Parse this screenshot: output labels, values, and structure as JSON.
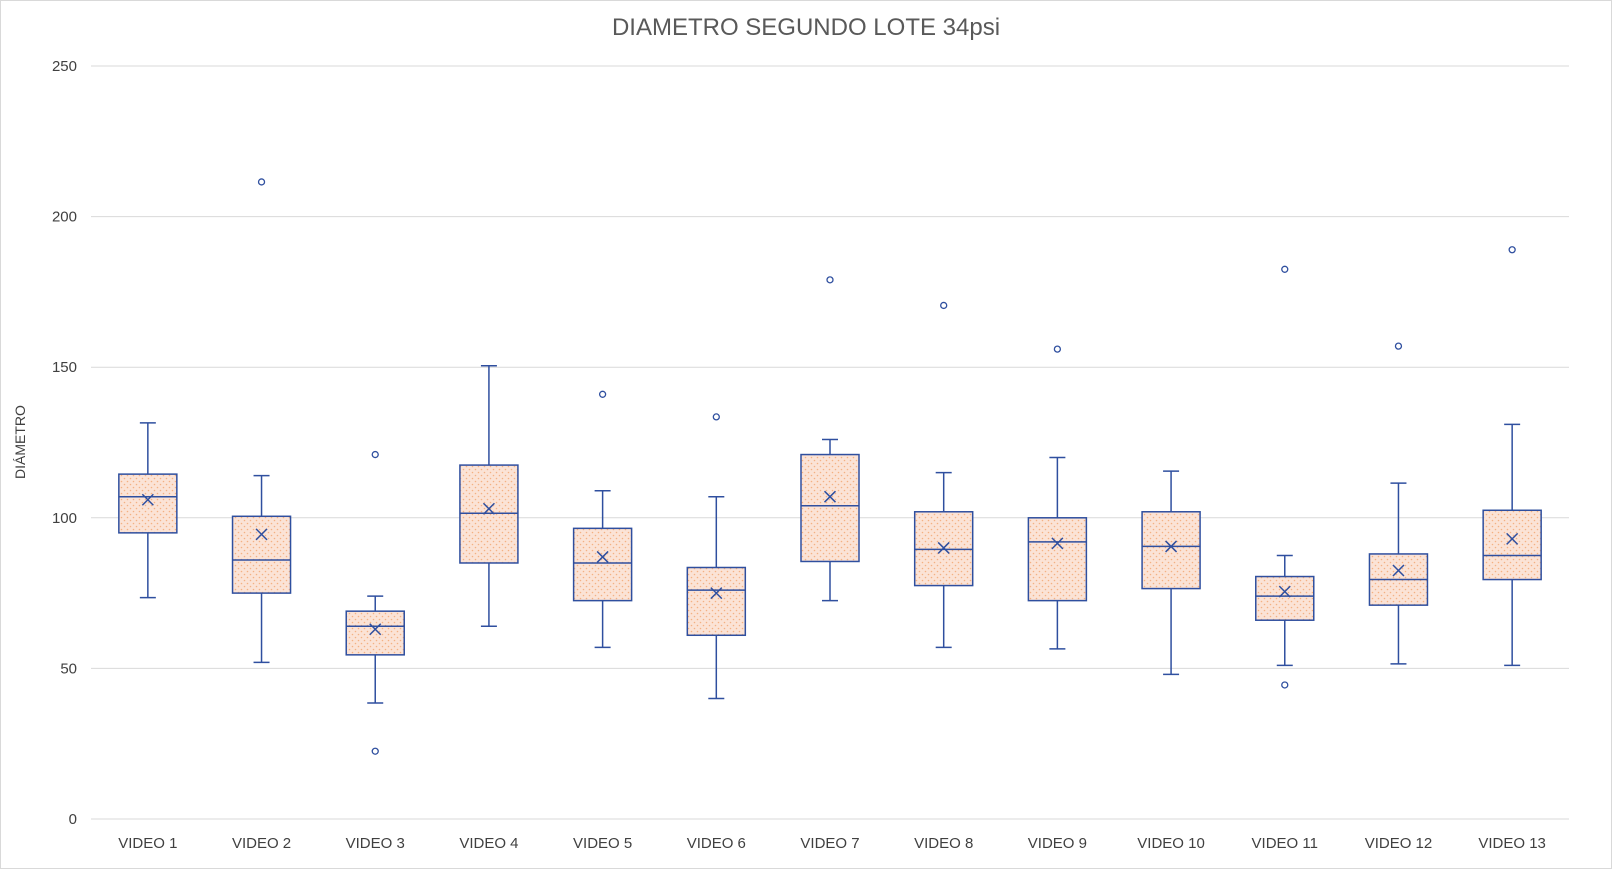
{
  "chart_data": {
    "type": "box",
    "title": "DIAMETRO SEGUNDO LOTE 34psi",
    "xlabel": "",
    "ylabel": "DIÁMETRO",
    "ylim": [
      0,
      250
    ],
    "yticks": [
      0,
      50,
      100,
      150,
      200,
      250
    ],
    "grid": true,
    "colors": {
      "box_fill": "#fbe3d6",
      "box_dots": "#f4b183",
      "stroke": "#2f4f9f",
      "grid": "#d9d9d9",
      "tick_text": "#404040"
    },
    "boxes": [
      {
        "category": "VIDEO 1",
        "min": 73.5,
        "q1": 95,
        "median": 107,
        "q3": 114.5,
        "max": 131.5,
        "mean": 106,
        "outliers": []
      },
      {
        "category": "VIDEO 2",
        "min": 52,
        "q1": 75,
        "median": 86,
        "q3": 100.5,
        "max": 114,
        "mean": 94.5,
        "outliers": [
          211.5
        ]
      },
      {
        "category": "VIDEO 3",
        "min": 38.5,
        "q1": 54.5,
        "median": 64,
        "q3": 69,
        "max": 74,
        "mean": 63,
        "outliers": [
          121,
          22.5
        ]
      },
      {
        "category": "VIDEO 4",
        "min": 64,
        "q1": 85,
        "median": 101.5,
        "q3": 117.5,
        "max": 150.5,
        "mean": 103,
        "outliers": []
      },
      {
        "category": "VIDEO 5",
        "min": 57,
        "q1": 72.5,
        "median": 85,
        "q3": 96.5,
        "max": 109,
        "mean": 87,
        "outliers": [
          141
        ]
      },
      {
        "category": "VIDEO 6",
        "min": 40,
        "q1": 61,
        "median": 76,
        "q3": 83.5,
        "max": 107,
        "mean": 75,
        "outliers": [
          133.5
        ]
      },
      {
        "category": "VIDEO 7",
        "min": 72.5,
        "q1": 85.5,
        "median": 104,
        "q3": 121,
        "max": 126,
        "mean": 107,
        "outliers": [
          179
        ]
      },
      {
        "category": "VIDEO 8",
        "min": 57,
        "q1": 77.5,
        "median": 89.5,
        "q3": 102,
        "max": 115,
        "mean": 90,
        "outliers": [
          170.5
        ]
      },
      {
        "category": "VIDEO 9",
        "min": 56.5,
        "q1": 72.5,
        "median": 92,
        "q3": 100,
        "max": 120,
        "mean": 91.5,
        "outliers": [
          156
        ]
      },
      {
        "category": "VIDEO 10",
        "min": 48,
        "q1": 76.5,
        "median": 90.5,
        "q3": 102,
        "max": 115.5,
        "mean": 90.5,
        "outliers": []
      },
      {
        "category": "VIDEO 11",
        "min": 51,
        "q1": 66,
        "median": 74,
        "q3": 80.5,
        "max": 87.5,
        "mean": 75.5,
        "outliers": [
          182.5,
          44.5
        ]
      },
      {
        "category": "VIDEO 12",
        "min": 51.5,
        "q1": 71,
        "median": 79.5,
        "q3": 88,
        "max": 111.5,
        "mean": 82.5,
        "outliers": [
          157
        ]
      },
      {
        "category": "VIDEO 13",
        "min": 51,
        "q1": 79.5,
        "median": 87.5,
        "q3": 102.5,
        "max": 131,
        "mean": 93,
        "outliers": [
          189
        ]
      }
    ]
  }
}
